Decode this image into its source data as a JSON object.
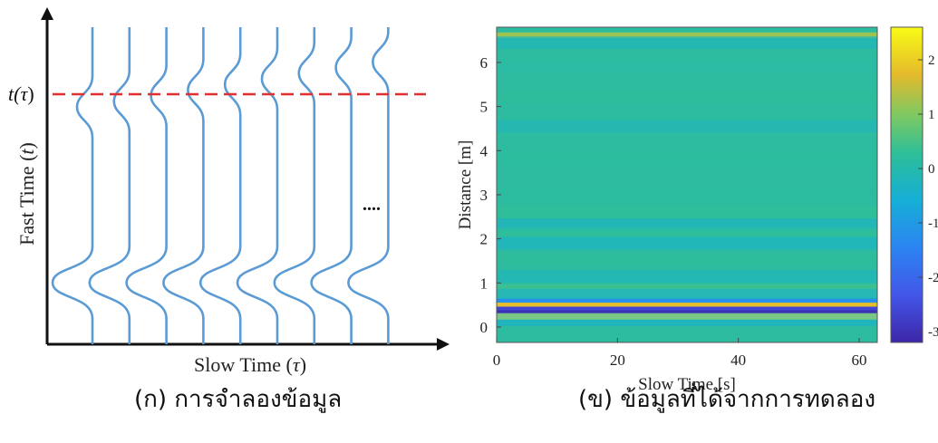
{
  "chart_data": [
    {
      "type": "line",
      "title": "",
      "caption": "(ก) การจำลองข้อมูล",
      "xlabel_prefix": "Slow Time (",
      "xlabel_symbol": "τ",
      "xlabel_suffix": ")",
      "ylabel_prefix": "Fast Time (",
      "ylabel_symbol": "t",
      "ylabel_suffix": ")",
      "marker_label_prefix": "t(",
      "marker_label_symbol": "τ",
      "marker_label_suffix": ")",
      "ellipsis": "....",
      "trace_count": 9,
      "reference_line": "dashed red at t(τ)",
      "colors": {
        "trace": "#5b9bd5",
        "reference": "#e03030",
        "axis": "#111111"
      }
    },
    {
      "type": "heatmap",
      "title": "",
      "caption": "(ข) ข้อมูลที่ได้จากการทดลอง",
      "xlabel": "Slow Time [s]",
      "ylabel": "Distance [m]",
      "x_ticks": [
        "0",
        "20",
        "40",
        "60"
      ],
      "y_ticks": [
        "0",
        "1",
        "2",
        "3",
        "4",
        "5",
        "6"
      ],
      "xlim": [
        0,
        63
      ],
      "ylim": [
        -0.35,
        6.8
      ],
      "colorbar_ticks": [
        "2",
        "1",
        "0",
        "-1",
        "-2",
        "-3"
      ],
      "colorbar_range": [
        -3.2,
        2.6
      ],
      "colormap": "parula",
      "bands": [
        {
          "y": 6.62,
          "value": 1.2
        },
        {
          "y": 6.45,
          "value": -0.3
        },
        {
          "y": 5.9,
          "value": 0.1
        },
        {
          "y": 5.2,
          "value": 0.25
        },
        {
          "y": 4.55,
          "value": -0.25
        },
        {
          "y": 3.85,
          "value": 0.2
        },
        {
          "y": 3.0,
          "value": 0.15
        },
        {
          "y": 2.6,
          "value": 0.3
        },
        {
          "y": 2.32,
          "value": -0.4
        },
        {
          "y": 2.1,
          "value": 0.3
        },
        {
          "y": 1.9,
          "value": -0.5
        },
        {
          "y": 1.55,
          "value": 0.25
        },
        {
          "y": 1.15,
          "value": -0.3
        },
        {
          "y": 0.82,
          "value": 0.5
        },
        {
          "y": 0.72,
          "value": -0.5
        },
        {
          "y": 0.58,
          "value": -1.2
        },
        {
          "y": 0.48,
          "value": 1.8
        },
        {
          "y": 0.39,
          "value": -2.6
        },
        {
          "y": 0.31,
          "value": -3.0
        },
        {
          "y": 0.24,
          "value": 2.3
        },
        {
          "y": 0.17,
          "value": -0.6
        }
      ]
    }
  ]
}
